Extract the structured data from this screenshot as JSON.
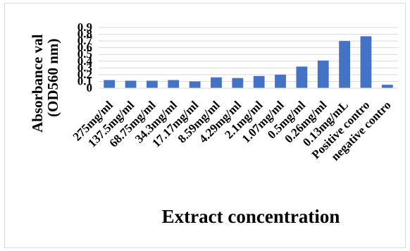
{
  "chart_data": {
    "type": "bar",
    "categories": [
      "275mg/ml",
      "137.5mg/ml",
      "68.75mg/ml",
      "34.3mg/ml",
      "17.17mg/ml",
      "8.59mg/ml",
      "4.29mg/ml",
      "2.1mg/ml",
      "1.07mg/ml",
      "0.5mg/ml",
      "0.26mg/ml",
      "0.13mg/mL",
      "Positive contro",
      "negative contro"
    ],
    "values": [
      0.12,
      0.11,
      0.11,
      0.12,
      0.1,
      0.16,
      0.15,
      0.18,
      0.2,
      0.32,
      0.41,
      0.7,
      0.77,
      0.05
    ],
    "xlabel": "Extract concentration",
    "ylabel_line1": "Absorbance val",
    "ylabel_line2": "(OD560 nm)",
    "ylim": [
      0,
      0.9
    ],
    "yticks": [
      "0",
      "0.1",
      "0.2",
      "0.3",
      "0.4",
      "0.5",
      "0.6",
      "0.7",
      "0.8",
      "0.9"
    ],
    "grid": true,
    "bar_color": "#4472c4"
  }
}
